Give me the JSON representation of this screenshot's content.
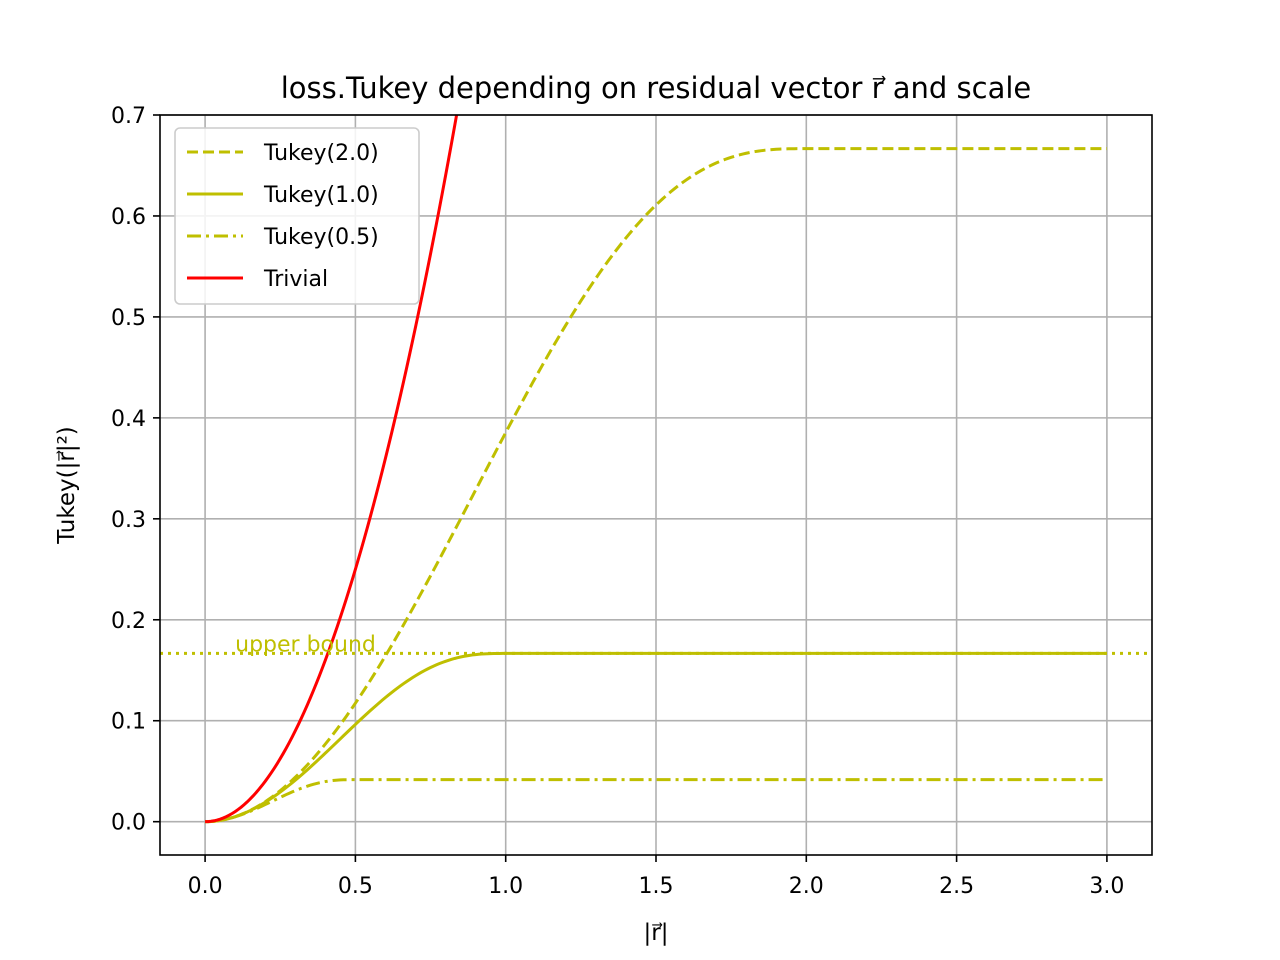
{
  "chart_data": {
    "type": "line",
    "title": "loss.Tukey depending on residual vector r⃗ and scale",
    "xlabel": "|r⃗|",
    "ylabel": "Tukey(|r⃗|²)",
    "xlim": [
      -0.15,
      3.15
    ],
    "ylim": [
      -0.033,
      0.7
    ],
    "xticks": [
      0.0,
      0.5,
      1.0,
      1.5,
      2.0,
      2.5,
      3.0
    ],
    "xtick_labels": [
      "0.0",
      "0.5",
      "1.0",
      "1.5",
      "2.0",
      "2.5",
      "3.0"
    ],
    "yticks": [
      0.0,
      0.1,
      0.2,
      0.3,
      0.4,
      0.5,
      0.6,
      0.7
    ],
    "ytick_labels": [
      "0.0",
      "0.1",
      "0.2",
      "0.3",
      "0.4",
      "0.5",
      "0.6",
      "0.7"
    ],
    "grid": true,
    "legend_position": "top-left",
    "series": [
      {
        "name": "Tukey(2.0)",
        "kind": "tukey",
        "scale": 2.0,
        "color": "#bfbf00",
        "style": "dashed",
        "x": [
          0.0,
          0.25,
          0.5,
          0.75,
          1.0,
          1.25,
          1.5,
          1.75,
          2.0,
          2.5,
          3.0
        ],
        "y": [
          0.0,
          0.0305,
          0.1152,
          0.2386,
          0.3802,
          0.5118,
          0.6079,
          0.6567,
          0.6667,
          0.6667,
          0.6667
        ]
      },
      {
        "name": "Tukey(1.0)",
        "kind": "tukey",
        "scale": 1.0,
        "color": "#bfbf00",
        "style": "solid",
        "x": [
          0.0,
          0.25,
          0.5,
          0.75,
          1.0,
          1.5,
          2.0,
          2.5,
          3.0
        ],
        "y": [
          0.0,
          0.0288,
          0.0951,
          0.152,
          0.1667,
          0.1667,
          0.1667,
          0.1667,
          0.1667
        ]
      },
      {
        "name": "Tukey(0.5)",
        "kind": "tukey",
        "scale": 0.5,
        "color": "#bfbf00",
        "style": "dashdot",
        "x": [
          0.0,
          0.25,
          0.5,
          1.0,
          1.5,
          2.0,
          2.5,
          3.0
        ],
        "y": [
          0.0,
          0.0238,
          0.0417,
          0.0417,
          0.0417,
          0.0417,
          0.0417,
          0.0417
        ]
      },
      {
        "name": "Trivial",
        "kind": "trivial",
        "color": "#ff0000",
        "style": "solid",
        "x": [
          0.0,
          0.25,
          0.5,
          0.75,
          0.8367
        ],
        "y": [
          0.0,
          0.0625,
          0.25,
          0.5625,
          0.7
        ]
      }
    ],
    "reference_line": {
      "y": 0.1667,
      "color": "#bfbf00",
      "style": "dotted"
    },
    "annotations": [
      {
        "text": "upper bound",
        "x": 0.1,
        "y": 0.1667,
        "color": "#bfbf00"
      }
    ]
  }
}
